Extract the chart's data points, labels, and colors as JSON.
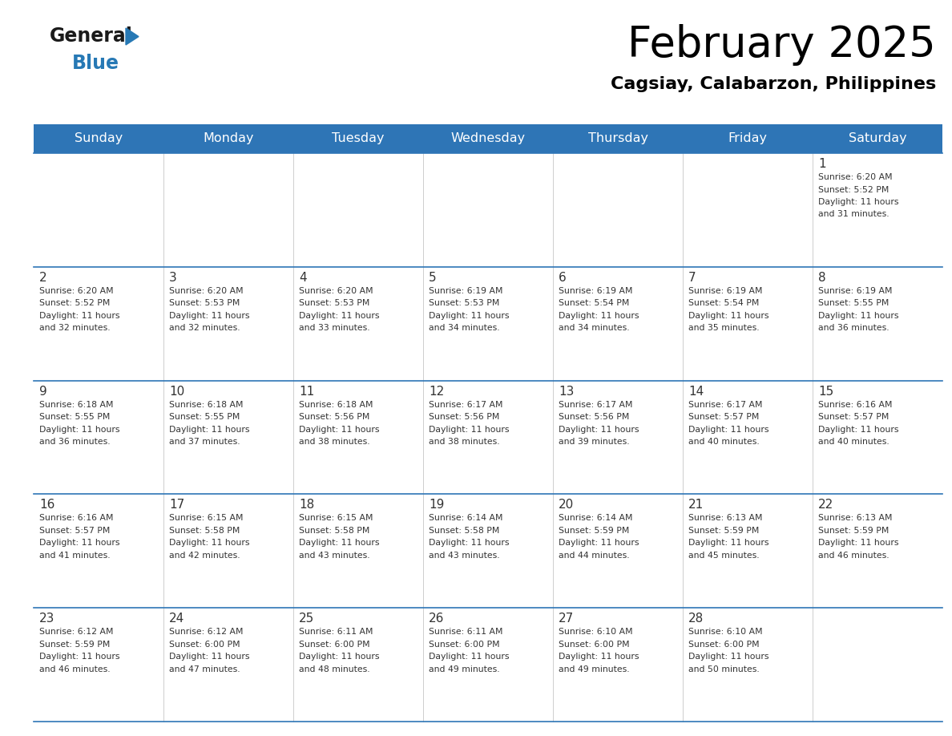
{
  "title": "February 2025",
  "subtitle": "Cagsiay, Calabarzon, Philippines",
  "header_bg": "#2E75B6",
  "header_text_color": "#FFFFFF",
  "days_of_week": [
    "Sunday",
    "Monday",
    "Tuesday",
    "Wednesday",
    "Thursday",
    "Friday",
    "Saturday"
  ],
  "cell_bg": "#FFFFFF",
  "border_color": "#2E75B6",
  "text_color": "#333333",
  "day_number_color": "#333333",
  "calendar": [
    [
      null,
      null,
      null,
      null,
      null,
      null,
      {
        "day": 1,
        "sunrise": "6:20 AM",
        "sunset": "5:52 PM",
        "daylight": "11 hours and 31 minutes"
      }
    ],
    [
      {
        "day": 2,
        "sunrise": "6:20 AM",
        "sunset": "5:52 PM",
        "daylight": "11 hours and 32 minutes"
      },
      {
        "day": 3,
        "sunrise": "6:20 AM",
        "sunset": "5:53 PM",
        "daylight": "11 hours and 32 minutes"
      },
      {
        "day": 4,
        "sunrise": "6:20 AM",
        "sunset": "5:53 PM",
        "daylight": "11 hours and 33 minutes"
      },
      {
        "day": 5,
        "sunrise": "6:19 AM",
        "sunset": "5:53 PM",
        "daylight": "11 hours and 34 minutes"
      },
      {
        "day": 6,
        "sunrise": "6:19 AM",
        "sunset": "5:54 PM",
        "daylight": "11 hours and 34 minutes"
      },
      {
        "day": 7,
        "sunrise": "6:19 AM",
        "sunset": "5:54 PM",
        "daylight": "11 hours and 35 minutes"
      },
      {
        "day": 8,
        "sunrise": "6:19 AM",
        "sunset": "5:55 PM",
        "daylight": "11 hours and 36 minutes"
      }
    ],
    [
      {
        "day": 9,
        "sunrise": "6:18 AM",
        "sunset": "5:55 PM",
        "daylight": "11 hours and 36 minutes"
      },
      {
        "day": 10,
        "sunrise": "6:18 AM",
        "sunset": "5:55 PM",
        "daylight": "11 hours and 37 minutes"
      },
      {
        "day": 11,
        "sunrise": "6:18 AM",
        "sunset": "5:56 PM",
        "daylight": "11 hours and 38 minutes"
      },
      {
        "day": 12,
        "sunrise": "6:17 AM",
        "sunset": "5:56 PM",
        "daylight": "11 hours and 38 minutes"
      },
      {
        "day": 13,
        "sunrise": "6:17 AM",
        "sunset": "5:56 PM",
        "daylight": "11 hours and 39 minutes"
      },
      {
        "day": 14,
        "sunrise": "6:17 AM",
        "sunset": "5:57 PM",
        "daylight": "11 hours and 40 minutes"
      },
      {
        "day": 15,
        "sunrise": "6:16 AM",
        "sunset": "5:57 PM",
        "daylight": "11 hours and 40 minutes"
      }
    ],
    [
      {
        "day": 16,
        "sunrise": "6:16 AM",
        "sunset": "5:57 PM",
        "daylight": "11 hours and 41 minutes"
      },
      {
        "day": 17,
        "sunrise": "6:15 AM",
        "sunset": "5:58 PM",
        "daylight": "11 hours and 42 minutes"
      },
      {
        "day": 18,
        "sunrise": "6:15 AM",
        "sunset": "5:58 PM",
        "daylight": "11 hours and 43 minutes"
      },
      {
        "day": 19,
        "sunrise": "6:14 AM",
        "sunset": "5:58 PM",
        "daylight": "11 hours and 43 minutes"
      },
      {
        "day": 20,
        "sunrise": "6:14 AM",
        "sunset": "5:59 PM",
        "daylight": "11 hours and 44 minutes"
      },
      {
        "day": 21,
        "sunrise": "6:13 AM",
        "sunset": "5:59 PM",
        "daylight": "11 hours and 45 minutes"
      },
      {
        "day": 22,
        "sunrise": "6:13 AM",
        "sunset": "5:59 PM",
        "daylight": "11 hours and 46 minutes"
      }
    ],
    [
      {
        "day": 23,
        "sunrise": "6:12 AM",
        "sunset": "5:59 PM",
        "daylight": "11 hours and 46 minutes"
      },
      {
        "day": 24,
        "sunrise": "6:12 AM",
        "sunset": "6:00 PM",
        "daylight": "11 hours and 47 minutes"
      },
      {
        "day": 25,
        "sunrise": "6:11 AM",
        "sunset": "6:00 PM",
        "daylight": "11 hours and 48 minutes"
      },
      {
        "day": 26,
        "sunrise": "6:11 AM",
        "sunset": "6:00 PM",
        "daylight": "11 hours and 49 minutes"
      },
      {
        "day": 27,
        "sunrise": "6:10 AM",
        "sunset": "6:00 PM",
        "daylight": "11 hours and 49 minutes"
      },
      {
        "day": 28,
        "sunrise": "6:10 AM",
        "sunset": "6:00 PM",
        "daylight": "11 hours and 50 minutes"
      },
      null
    ]
  ],
  "logo_general_color": "#1a1a1a",
  "logo_blue_color": "#2779B5"
}
